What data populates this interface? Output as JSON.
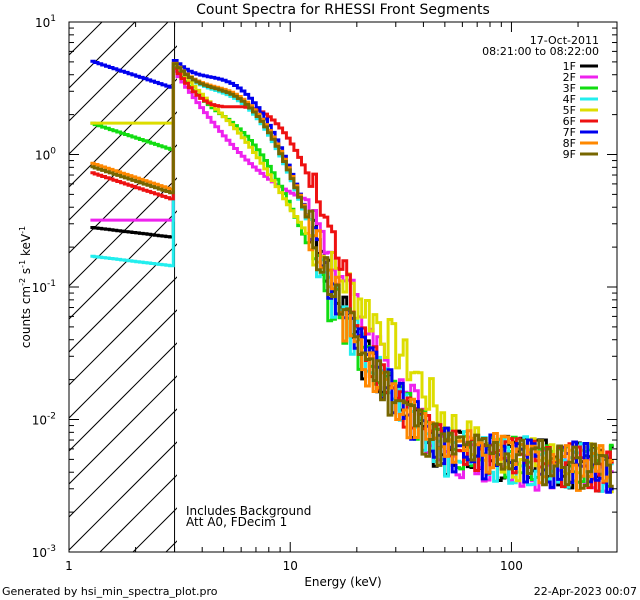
{
  "chart_data": {
    "type": "line",
    "title": "Count Spectra for RHESSI Front Segments",
    "xlabel": "Energy (keV)",
    "ylabel_parts": [
      "counts cm",
      "-2",
      " s",
      "-1",
      " keV",
      "-1"
    ],
    "xscale": "log",
    "yscale": "log",
    "xlim": [
      1,
      300
    ],
    "ylim": [
      0.001,
      10
    ],
    "x_ticks": [
      {
        "value": 1,
        "label": "1"
      },
      {
        "value": 10,
        "label": "10"
      },
      {
        "value": 100,
        "label": "100"
      }
    ],
    "y_ticks": [
      {
        "value": 10,
        "base": "10",
        "exp": "1"
      },
      {
        "value": 1,
        "base": "10",
        "exp": "0"
      },
      {
        "value": 0.1,
        "base": "10",
        "exp": "-1"
      },
      {
        "value": 0.01,
        "base": "10",
        "exp": "-2"
      },
      {
        "value": 0.001,
        "base": "10",
        "exp": "-3"
      }
    ],
    "date": "17-Oct-2011",
    "time_range": "08:21:00 to 08:22:00",
    "hatched_region": {
      "x_min": 1,
      "x_max": 3
    },
    "notes": [
      "Includes Background",
      "Att A0, FDecim 1"
    ],
    "series": [
      {
        "name": "1F",
        "color": "#000000",
        "peak_energy": 5.5,
        "peak_value": 1.9,
        "low_value": 0.28
      },
      {
        "name": "2F",
        "color": "#ee22ee",
        "peak_energy": null,
        "peak_value": 0.38,
        "low_value": 0.32
      },
      {
        "name": "3F",
        "color": "#11dd11",
        "peak_energy": 5.5,
        "peak_value": 0.8,
        "low_value": 1.7
      },
      {
        "name": "4F",
        "color": "#22eeee",
        "peak_energy": 5.5,
        "peak_value": 1.8,
        "low_value": 0.17
      },
      {
        "name": "5F",
        "color": "#dddd00",
        "peak_energy": null,
        "peak_value": 1.8,
        "low_value": 1.15
      },
      {
        "name": "6F",
        "color": "#ee1111",
        "peak_energy": 7.0,
        "peak_value": 1.7,
        "low_value": 0.72
      },
      {
        "name": "7F",
        "color": "#0000ee",
        "peak_energy": 5.3,
        "peak_value": 2.5,
        "low_value": 5.0
      },
      {
        "name": "8F",
        "color": "#ff8800",
        "peak_energy": 5.5,
        "peak_value": 2.0,
        "low_value": 0.85
      },
      {
        "name": "9F",
        "color": "#776600",
        "peak_energy": 5.5,
        "peak_value": 1.9,
        "low_value": 0.8
      }
    ]
  },
  "footer": {
    "left": "Generated by hsi_min_spectra_plot.pro",
    "right": "22-Apr-2023 00:07"
  }
}
